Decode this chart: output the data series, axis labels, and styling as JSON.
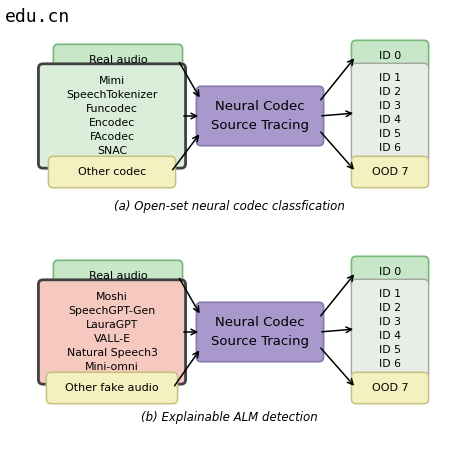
{
  "title_top": "edu.cn",
  "subtitle_a": "(a) Open-set neural codec classfication",
  "subtitle_b": "(b) Explainable ALM detection",
  "ncst_label": "Neural Codec\nSource Tracing",
  "color_green_box": "#c8e6c8",
  "color_green_border": "#7ab87a",
  "color_green_light": "#daeeda",
  "color_green_ids": "#d8ead8",
  "color_yellow": "#f5f0c0",
  "color_yellow_border": "#c8c080",
  "color_purple": "#a898cc",
  "color_purple_border": "#8878aa",
  "color_pink": "#f5c8c0",
  "color_ids_bg": "#e8ede8",
  "color_ids_border": "#a0a8a0",
  "diagram_a": {
    "real_audio_label": "Real audio",
    "codec_box_items": [
      "Mimi",
      "SpeechTokenizer",
      "Funcodec",
      "Encodec",
      "FAcodec",
      "SNAC"
    ],
    "other_label": "Other codec",
    "id_labels": [
      "ID 0",
      "ID 1",
      "ID 2",
      "ID 3",
      "ID 4",
      "ID 5",
      "ID 6"
    ],
    "ood_label": "OOD 7"
  },
  "diagram_b": {
    "real_audio_label": "Real audio",
    "fake_box_items": [
      "Moshi",
      "SpeechGPT-Gen",
      "LauraGPT",
      "VALL-E",
      "Natural Speech3",
      "Mini-omni"
    ],
    "other_label": "Other fake audio",
    "id_labels": [
      "ID 0",
      "ID 1",
      "ID 2",
      "ID 3",
      "ID 4",
      "ID 5",
      "ID 6"
    ],
    "ood_label": "OOD 7"
  }
}
